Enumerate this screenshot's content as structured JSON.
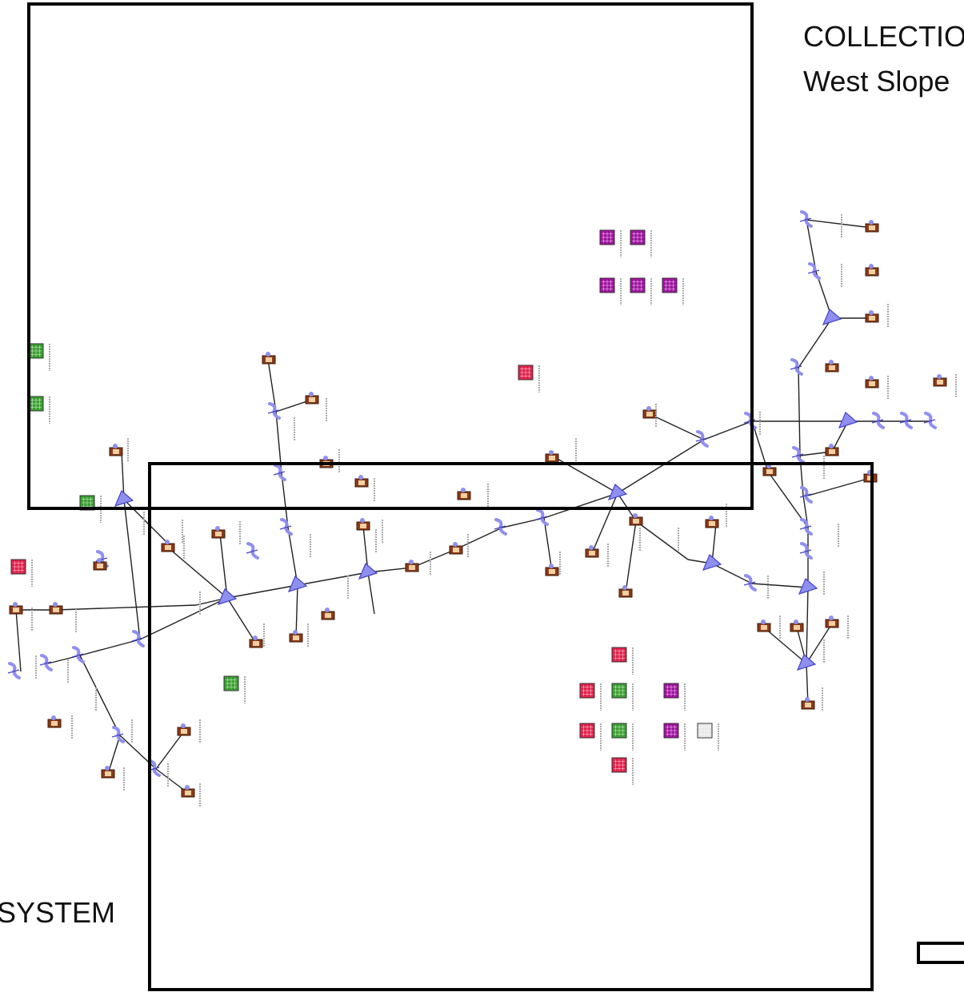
{
  "labels": {
    "title_line1": "COLLECTIO",
    "title_line2": "West Slope",
    "system_fragment": "SYSTEM"
  },
  "colors": {
    "node_fill": "#8f8ff0",
    "node_stroke": "#4444cc",
    "pipe": "#222222",
    "station": "#8b3a1a",
    "tank": "#6b2a10",
    "red_box": "#e0204a",
    "green_box": "#3aa030",
    "purple_box": "#a010a0",
    "grey_box": "#e8e8e8"
  },
  "icons": {
    "node": "triangle-junction-icon",
    "regulator": "regulator-icon",
    "station": "metering-station-icon",
    "red_grid": "red-grid-icon",
    "green_grid": "green-grid-icon",
    "purple_grid": "purple-grid-icon",
    "grey_grid": "grey-grid-icon"
  }
}
